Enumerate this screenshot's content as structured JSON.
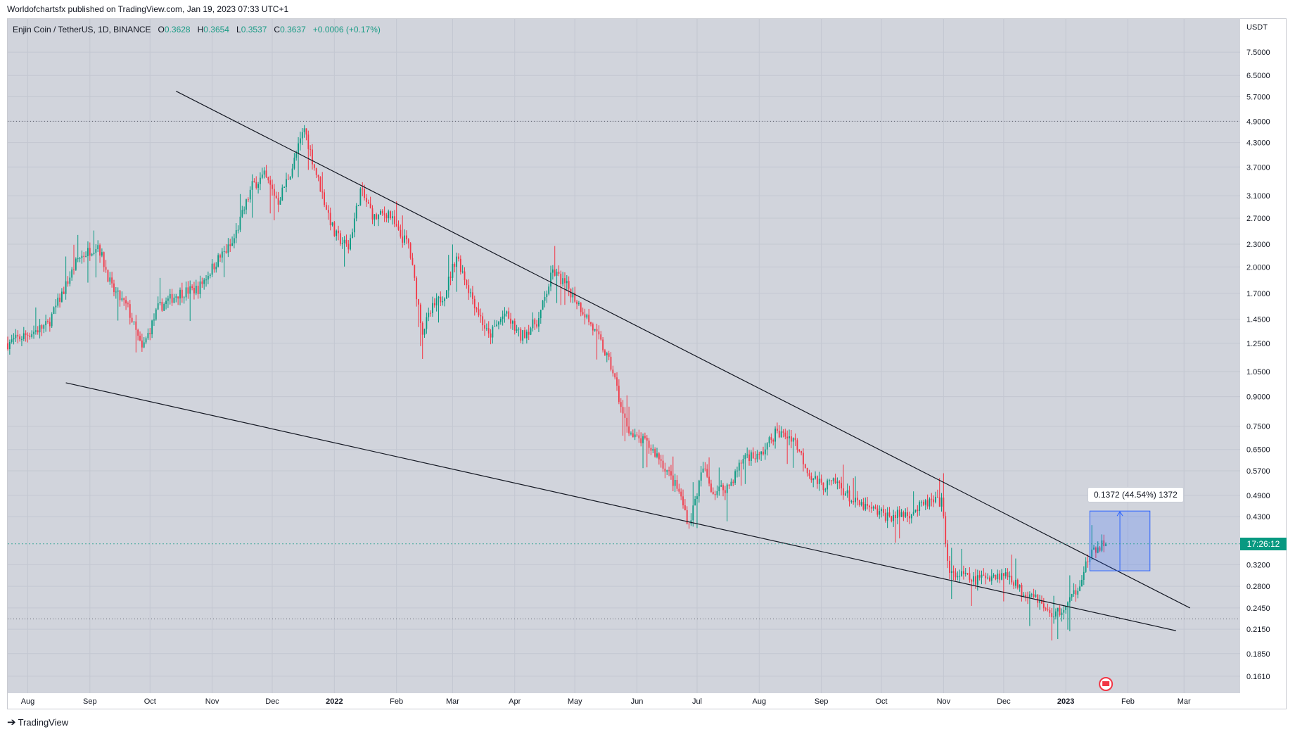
{
  "header": {
    "publish_note": "Worldofchartsfx published on TradingView.com, Jan 19, 2023 07:33 UTC+1"
  },
  "symbol": {
    "name": "Enjin Coin / TetherUS, 1D, BINANCE",
    "open_label": "O",
    "open": "0.3628",
    "high_label": "H",
    "high": "0.3654",
    "low_label": "L",
    "low": "0.3537",
    "close_label": "C",
    "close": "0.3637",
    "change": "+0.0006 (+0.17%)"
  },
  "price_axis": {
    "unit": "USDT",
    "countdown": "17:26:12"
  },
  "measure": {
    "label": "0.1372 (44.54%) 1372"
  },
  "footer": {
    "brand": "TradingView"
  },
  "chart_data": {
    "type": "candlestick",
    "title": "Enjin Coin / TetherUS, 1D, BINANCE",
    "y_scale": "log",
    "ylim": [
      0.145,
      9.2
    ],
    "y_ticks": [
      7.5,
      6.5,
      5.7,
      4.9,
      4.3,
      3.7,
      3.1,
      2.7,
      2.3,
      2.0,
      1.7,
      1.45,
      1.25,
      1.05,
      0.9,
      0.75,
      0.65,
      0.57,
      0.49,
      0.43,
      0.32,
      0.28,
      0.245,
      0.215,
      0.185,
      0.161
    ],
    "y_tick_labels": [
      "7.5000",
      "6.5000",
      "5.7000",
      "4.9000",
      "4.3000",
      "3.7000",
      "3.1000",
      "2.7000",
      "2.3000",
      "2.0000",
      "1.7000",
      "1.4500",
      "1.2500",
      "1.0500",
      "0.9000",
      "0.7500",
      "0.6500",
      "0.5700",
      "0.4900",
      "0.4300",
      "0.3200",
      "0.2800",
      "0.2450",
      "0.2150",
      "0.1850",
      "0.1610"
    ],
    "x_tick_labels": [
      "Aug",
      "Sep",
      "Oct",
      "Nov",
      "Dec",
      "2022",
      "Feb",
      "Mar",
      "Apr",
      "May",
      "Jun",
      "Jul",
      "Aug",
      "Sep",
      "Oct",
      "Nov",
      "Dec",
      "2023",
      "Feb",
      "Mar"
    ],
    "x_tick_days": [
      10,
      41,
      71,
      102,
      132,
      163,
      194,
      222,
      253,
      283,
      314,
      344,
      375,
      406,
      436,
      467,
      497,
      528,
      559,
      587
    ],
    "days_range": [
      0,
      615
    ],
    "price_path": [
      [
        0,
        1.25
      ],
      [
        20,
        1.4
      ],
      [
        35,
        2.1
      ],
      [
        45,
        2.3
      ],
      [
        52,
        1.75
      ],
      [
        60,
        1.55
      ],
      [
        67,
        1.2
      ],
      [
        75,
        1.55
      ],
      [
        85,
        1.7
      ],
      [
        95,
        1.75
      ],
      [
        105,
        2.1
      ],
      [
        112,
        2.3
      ],
      [
        122,
        3.3
      ],
      [
        128,
        3.5
      ],
      [
        135,
        3.0
      ],
      [
        142,
        3.7
      ],
      [
        148,
        4.7
      ],
      [
        153,
        3.7
      ],
      [
        158,
        3.0
      ],
      [
        163,
        2.45
      ],
      [
        170,
        2.25
      ],
      [
        176,
        3.2
      ],
      [
        183,
        2.7
      ],
      [
        190,
        2.8
      ],
      [
        195,
        2.45
      ],
      [
        200,
        2.3
      ],
      [
        207,
        1.35
      ],
      [
        212,
        1.55
      ],
      [
        218,
        1.7
      ],
      [
        224,
        2.15
      ],
      [
        230,
        1.75
      ],
      [
        240,
        1.3
      ],
      [
        248,
        1.5
      ],
      [
        256,
        1.3
      ],
      [
        265,
        1.45
      ],
      [
        272,
        1.95
      ],
      [
        280,
        1.75
      ],
      [
        288,
        1.5
      ],
      [
        296,
        1.25
      ],
      [
        302,
        1.05
      ],
      [
        307,
        0.8
      ],
      [
        312,
        0.7
      ],
      [
        318,
        0.68
      ],
      [
        325,
        0.62
      ],
      [
        335,
        0.5
      ],
      [
        340,
        0.41
      ],
      [
        347,
        0.58
      ],
      [
        352,
        0.5
      ],
      [
        360,
        0.52
      ],
      [
        368,
        0.63
      ],
      [
        375,
        0.62
      ],
      [
        383,
        0.72
      ],
      [
        392,
        0.7
      ],
      [
        400,
        0.56
      ],
      [
        406,
        0.52
      ],
      [
        414,
        0.53
      ],
      [
        422,
        0.47
      ],
      [
        430,
        0.45
      ],
      [
        440,
        0.43
      ],
      [
        450,
        0.44
      ],
      [
        460,
        0.47
      ],
      [
        466,
        0.47
      ],
      [
        470,
        0.3
      ],
      [
        476,
        0.3
      ],
      [
        482,
        0.29
      ],
      [
        490,
        0.3
      ],
      [
        500,
        0.3
      ],
      [
        506,
        0.27
      ],
      [
        512,
        0.27
      ],
      [
        518,
        0.24
      ],
      [
        522,
        0.235
      ],
      [
        528,
        0.245
      ],
      [
        534,
        0.28
      ],
      [
        539,
        0.33
      ],
      [
        545,
        0.36
      ],
      [
        548,
        0.3637
      ]
    ],
    "annotations": {
      "upper_trendline": [
        [
          84,
          5.9
        ],
        [
          590,
          0.245
        ]
      ],
      "lower_trendline": [
        [
          29,
          0.98
        ],
        [
          583,
          0.213
        ]
      ],
      "high_level": 4.9,
      "low_level": 0.229,
      "measure_box": {
        "day_start": 540,
        "day_end": 570,
        "price_low": 0.308,
        "price_high": 0.445
      }
    },
    "last_price": 0.3637
  }
}
